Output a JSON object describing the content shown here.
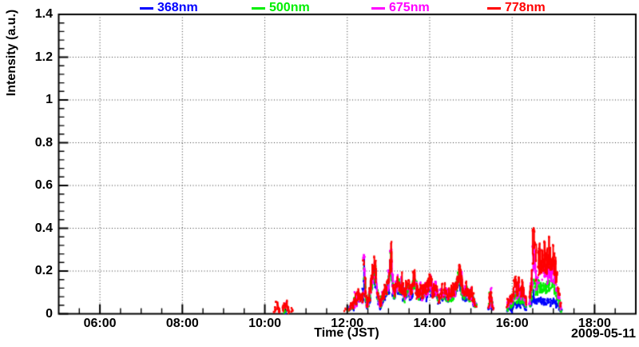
{
  "chart_data": {
    "type": "scatter",
    "xlabel": "Time (JST)",
    "ylabel": "Intensity (a.u.)",
    "date_label": "2009-05-11",
    "x_axis": {
      "range_hours": [
        5,
        19
      ],
      "major_hours": [
        6,
        8,
        10,
        12,
        14,
        16,
        18
      ],
      "major_labels": [
        "06:00",
        "08:00",
        "10:00",
        "12:00",
        "14:00",
        "16:00",
        "18:00"
      ],
      "minor_step_hours": 0.5,
      "grid": "dotted"
    },
    "y_axis": {
      "range": [
        0,
        1.4
      ],
      "major_step": 0.2,
      "minor_step": 0.04,
      "major_labels": [
        "0",
        "0.2",
        "0.4",
        "0.6",
        "0.8",
        "1",
        "1.2",
        "1.4"
      ],
      "major_values": [
        0,
        0.2,
        0.4,
        0.6,
        0.8,
        1,
        1.2,
        1.4
      ],
      "grid": "dotted"
    },
    "legend": {
      "position": "top",
      "entries": [
        "368nm",
        "500nm",
        "675nm",
        "778nm"
      ]
    },
    "series": [
      {
        "name": "368nm",
        "color": "#0000ff",
        "underlay_of": "778nm",
        "underlay": [
          {
            "seg": 4,
            "scale": 0.8
          },
          {
            "seg": 5,
            "scale": 0.7
          },
          {
            "seg": 6,
            "scale": 0.38
          }
        ],
        "extra_points": [
          [
            10.51,
            0.008
          ]
        ],
        "final_segment": [
          [
            16.42,
            0.03
          ],
          [
            16.46,
            0.05
          ],
          [
            16.49,
            0.07
          ],
          [
            16.52,
            0.09
          ],
          [
            16.56,
            0.065
          ],
          [
            16.6,
            0.05
          ],
          [
            16.64,
            0.06
          ],
          [
            16.67,
            0.07
          ],
          [
            16.71,
            0.05
          ],
          [
            16.76,
            0.06
          ],
          [
            16.82,
            0.055
          ],
          [
            16.88,
            0.065
          ],
          [
            16.94,
            0.05
          ],
          [
            17.0,
            0.06
          ],
          [
            17.05,
            0.05
          ],
          [
            17.1,
            0.04
          ],
          [
            17.15,
            0.03
          ],
          [
            17.19,
            0.015
          ]
        ]
      },
      {
        "name": "500nm",
        "color": "#00ee00",
        "underlay_of": "778nm",
        "underlay": [
          {
            "seg": 4,
            "scale": 0.88
          },
          {
            "seg": 5,
            "scale": 0.8
          },
          {
            "seg": 6,
            "scale": 0.6
          }
        ],
        "extra_points": [
          [
            10.49,
            0.012
          ]
        ],
        "final_segment": [
          [
            16.42,
            0.04
          ],
          [
            16.46,
            0.08
          ],
          [
            16.49,
            0.12
          ],
          [
            16.52,
            0.17
          ],
          [
            16.56,
            0.12
          ],
          [
            16.6,
            0.1
          ],
          [
            16.64,
            0.12
          ],
          [
            16.67,
            0.14
          ],
          [
            16.71,
            0.11
          ],
          [
            16.76,
            0.13
          ],
          [
            16.82,
            0.12
          ],
          [
            16.88,
            0.14
          ],
          [
            16.94,
            0.12
          ],
          [
            17.0,
            0.14
          ],
          [
            17.05,
            0.11
          ],
          [
            17.1,
            0.08
          ],
          [
            17.15,
            0.05
          ],
          [
            17.19,
            0.02
          ]
        ]
      },
      {
        "name": "675nm",
        "color": "#ff00ff",
        "underlay_of": "778nm",
        "underlay": [
          {
            "seg": 4,
            "scale": 0.94
          },
          {
            "seg": 5,
            "scale": 0.9
          },
          {
            "seg": 6,
            "scale": 0.85
          }
        ],
        "extra_points": [
          [
            10.5,
            0.045
          ],
          [
            12.41,
            0.265
          ],
          [
            12.415,
            0.27
          ],
          [
            13.05,
            0.3
          ]
        ],
        "final_segment": [
          [
            16.42,
            0.05
          ],
          [
            16.46,
            0.12
          ],
          [
            16.49,
            0.2
          ],
          [
            16.52,
            0.33
          ],
          [
            16.56,
            0.22
          ],
          [
            16.6,
            0.15
          ],
          [
            16.64,
            0.2
          ],
          [
            16.67,
            0.24
          ],
          [
            16.71,
            0.16
          ],
          [
            16.76,
            0.21
          ],
          [
            16.82,
            0.19
          ],
          [
            16.88,
            0.22
          ],
          [
            16.94,
            0.18
          ],
          [
            17.0,
            0.2
          ],
          [
            17.05,
            0.15
          ],
          [
            17.1,
            0.1
          ],
          [
            17.15,
            0.06
          ],
          [
            17.19,
            0.025
          ]
        ]
      },
      {
        "name": "778nm",
        "color": "#ff0000",
        "segments": [
          [
            [
              10.24,
              0.01
            ],
            [
              10.27,
              0.03
            ],
            [
              10.3,
              0.05
            ],
            [
              10.33,
              0.02
            ],
            [
              10.36,
              0.01
            ]
          ],
          [
            [
              10.44,
              0.015
            ],
            [
              10.47,
              0.05
            ],
            [
              10.5,
              0.03
            ],
            [
              10.53,
              0.055
            ],
            [
              10.56,
              0.02
            ],
            [
              10.59,
              0.01
            ]
          ],
          [
            [
              10.65,
              0.02
            ],
            [
              10.67,
              0.02
            ]
          ],
          [
            [
              11.94,
              0.015
            ],
            [
              11.96,
              0.015
            ]
          ],
          [
            [
              12.05,
              0.02
            ],
            [
              12.1,
              0.05
            ],
            [
              12.14,
              0.03
            ],
            [
              12.18,
              0.08
            ],
            [
              12.22,
              0.05
            ],
            [
              12.26,
              0.1
            ],
            [
              12.3,
              0.07
            ],
            [
              12.34,
              0.09
            ],
            [
              12.38,
              0.06
            ],
            [
              12.41,
              0.26
            ],
            [
              12.44,
              0.1
            ],
            [
              12.48,
              0.04
            ],
            [
              12.52,
              0.06
            ],
            [
              12.56,
              0.12
            ],
            [
              12.6,
              0.16
            ],
            [
              12.64,
              0.2
            ],
            [
              12.68,
              0.23
            ],
            [
              12.72,
              0.12
            ],
            [
              12.76,
              0.07
            ],
            [
              12.8,
              0.04
            ],
            [
              12.85,
              0.08
            ],
            [
              12.9,
              0.11
            ],
            [
              12.95,
              0.12
            ],
            [
              13.0,
              0.16
            ],
            [
              13.05,
              0.3
            ],
            [
              13.09,
              0.18
            ],
            [
              13.13,
              0.1
            ],
            [
              13.18,
              0.13
            ],
            [
              13.23,
              0.17
            ],
            [
              13.28,
              0.12
            ],
            [
              13.33,
              0.15
            ],
            [
              13.38,
              0.08
            ],
            [
              13.43,
              0.12
            ],
            [
              13.48,
              0.14
            ],
            [
              13.53,
              0.1
            ],
            [
              13.58,
              0.13
            ],
            [
              13.63,
              0.18
            ],
            [
              13.68,
              0.12
            ],
            [
              13.73,
              0.1
            ],
            [
              13.78,
              0.12
            ],
            [
              13.83,
              0.09
            ],
            [
              13.88,
              0.13
            ],
            [
              13.93,
              0.11
            ],
            [
              13.98,
              0.15
            ],
            [
              14.03,
              0.17
            ],
            [
              14.08,
              0.1
            ],
            [
              14.13,
              0.13
            ],
            [
              14.18,
              0.11
            ],
            [
              14.23,
              0.07
            ],
            [
              14.28,
              0.11
            ],
            [
              14.33,
              0.09
            ],
            [
              14.38,
              0.12
            ],
            [
              14.43,
              0.08
            ],
            [
              14.48,
              0.1
            ],
            [
              14.53,
              0.09
            ],
            [
              14.58,
              0.11
            ],
            [
              14.63,
              0.13
            ],
            [
              14.68,
              0.16
            ],
            [
              14.73,
              0.22
            ],
            [
              14.77,
              0.14
            ],
            [
              14.82,
              0.09
            ],
            [
              14.87,
              0.12
            ],
            [
              14.92,
              0.1
            ],
            [
              14.97,
              0.08
            ],
            [
              15.02,
              0.1
            ],
            [
              15.07,
              0.06
            ],
            [
              15.12,
              0.04
            ]
          ],
          [
            [
              15.44,
              0.03
            ],
            [
              15.47,
              0.12
            ],
            [
              15.5,
              0.06
            ],
            [
              15.53,
              0.03
            ]
          ],
          [
            [
              15.88,
              0.04
            ],
            [
              15.93,
              0.08
            ],
            [
              15.98,
              0.06
            ],
            [
              16.03,
              0.1
            ],
            [
              16.08,
              0.17
            ],
            [
              16.12,
              0.09
            ],
            [
              16.16,
              0.15
            ],
            [
              16.2,
              0.1
            ],
            [
              16.25,
              0.13
            ],
            [
              16.3,
              0.08
            ],
            [
              16.34,
              0.05
            ]
          ],
          [
            [
              16.42,
              0.07
            ],
            [
              16.46,
              0.14
            ],
            [
              16.49,
              0.26
            ],
            [
              16.52,
              0.41
            ],
            [
              16.56,
              0.3
            ],
            [
              16.6,
              0.19
            ],
            [
              16.64,
              0.24
            ],
            [
              16.67,
              0.3
            ],
            [
              16.71,
              0.21
            ],
            [
              16.76,
              0.27
            ],
            [
              16.82,
              0.25
            ],
            [
              16.88,
              0.27
            ],
            [
              16.94,
              0.24
            ],
            [
              17.0,
              0.26
            ],
            [
              17.05,
              0.22
            ],
            [
              17.1,
              0.14
            ],
            [
              17.15,
              0.09
            ],
            [
              17.19,
              0.03
            ]
          ]
        ]
      }
    ]
  }
}
